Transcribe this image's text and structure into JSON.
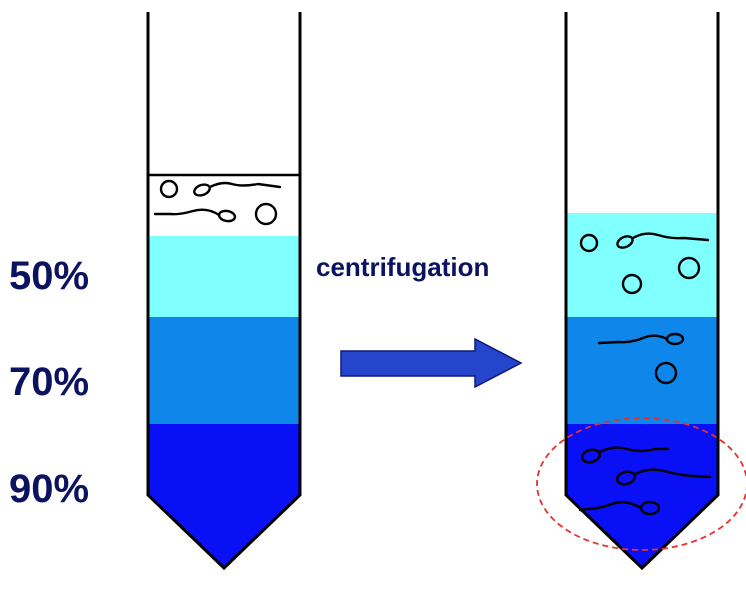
{
  "gradient_labels": [
    "50%",
    "70%",
    "90%"
  ],
  "arrow_label": "centrifugation",
  "colors": {
    "layer_50": "#80ffff",
    "layer_70": "#0e86ea",
    "layer_90": "#0a10f5",
    "arrow_fill": "#2546cc",
    "arrow_stroke": "#0b1a7a",
    "label_text": "#0b1260",
    "highlight_circle": "#e53030"
  }
}
